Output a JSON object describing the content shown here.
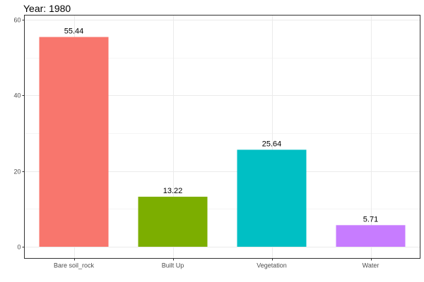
{
  "chart_data": {
    "type": "bar",
    "title": "Year: 1980",
    "xlabel": "",
    "ylabel": "",
    "categories": [
      "Bare soil_rock",
      "Built Up",
      "Vegetation",
      "Water"
    ],
    "values": [
      55.44,
      13.22,
      25.64,
      5.71
    ],
    "value_labels": [
      "55.44",
      "13.22",
      "25.64",
      "5.71"
    ],
    "colors": [
      "#F8766D",
      "#7CAE00",
      "#00BFC4",
      "#C77CFF"
    ],
    "ylim": [
      0,
      60
    ],
    "yticks": [
      0,
      20,
      40,
      60
    ],
    "ytick_labels": [
      "0",
      "20",
      "40",
      "60"
    ],
    "grid": true,
    "legend": "none"
  }
}
